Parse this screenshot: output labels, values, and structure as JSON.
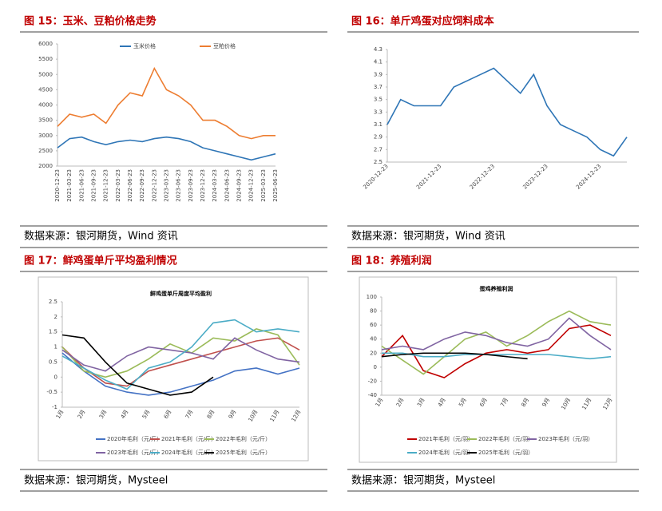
{
  "captions": [
    "图 15：玉米、豆粕价格走势",
    "图 16：单斤鸡蛋对应饲料成本",
    "图 17：鲜鸡蛋单斤平均盈利情况",
    "图 18：养殖利润"
  ],
  "sources": [
    "数据来源：银河期货，Wind 资讯",
    "数据来源：银河期货，Wind 资讯",
    "数据来源：银河期货，Mysteel",
    "数据来源：银河期货，Mysteel"
  ],
  "chart_data": [
    {
      "type": "line",
      "legend": "top",
      "categories": [
        "2020-12-23",
        "2021-03-23",
        "2021-06-23",
        "2021-09-23",
        "2021-12-23",
        "2022-03-23",
        "2022-06-23",
        "2022-09-23",
        "2022-12-23",
        "2023-03-23",
        "2023-06-23",
        "2023-09-23",
        "2023-12-23",
        "2024-03-23",
        "2024-06-23",
        "2024-09-23",
        "2024-12-23",
        "2025-03-23",
        "2025-06-23"
      ],
      "series": [
        {
          "name": "玉米价格",
          "color": "#2e75b6",
          "values": [
            2600,
            2900,
            2950,
            2800,
            2700,
            2800,
            2850,
            2800,
            2900,
            2950,
            2900,
            2800,
            2600,
            2500,
            2400,
            2300,
            2200,
            2300,
            2400
          ]
        },
        {
          "name": "豆粕价格",
          "color": "#ed7d31",
          "values": [
            3300,
            3700,
            3600,
            3700,
            3400,
            4000,
            4400,
            4300,
            5200,
            4500,
            4300,
            4000,
            3500,
            3500,
            3300,
            3000,
            2900,
            3000,
            3000
          ]
        }
      ],
      "ylim": [
        2000,
        6000
      ],
      "yticks": [
        2000,
        2500,
        3000,
        3500,
        4000,
        4500,
        5000,
        5500,
        6000
      ]
    },
    {
      "type": "line",
      "categories": [
        "2020-12-23",
        null,
        null,
        null,
        "2021-12-23",
        null,
        null,
        null,
        "2022-12-23",
        null,
        null,
        null,
        "2023-12-23",
        null,
        null,
        null,
        "2024-12-23",
        null,
        null
      ],
      "color": "#2e75b6",
      "values": [
        3.1,
        3.5,
        3.4,
        3.4,
        3.4,
        3.7,
        3.8,
        3.9,
        4.0,
        3.8,
        3.6,
        3.9,
        3.4,
        3.1,
        3.0,
        2.9,
        2.7,
        2.6,
        2.9
      ],
      "ylim": [
        2.5,
        4.3
      ],
      "yticks": [
        2.5,
        2.7,
        2.9,
        3.1,
        3.3,
        3.5,
        3.7,
        3.9,
        4.1,
        4.3
      ]
    },
    {
      "type": "line",
      "title": "鲜鸡蛋单斤周度平均盈利",
      "legend": "bottom",
      "categories": [
        "1月",
        "2月",
        "3月",
        "4月",
        "5月",
        "6月",
        "7月",
        "8月",
        "9月",
        "10月",
        "11月",
        "12月"
      ],
      "series": [
        {
          "name": "2020年毛利（元/斤）",
          "color": "#4472c4",
          "values": [
            0.8,
            0.2,
            -0.3,
            -0.5,
            -0.6,
            -0.5,
            -0.3,
            -0.1,
            0.2,
            0.3,
            0.1,
            0.3
          ]
        },
        {
          "name": "2021年毛利（元/斤）",
          "color": "#c0504d",
          "values": [
            1.0,
            0.3,
            -0.2,
            -0.3,
            0.2,
            0.4,
            0.6,
            0.8,
            1.0,
            1.2,
            1.3,
            0.9
          ]
        },
        {
          "name": "2022年毛利（元/斤）",
          "color": "#9bbb59",
          "values": [
            1.0,
            0.2,
            0.0,
            0.2,
            0.6,
            1.1,
            0.8,
            1.3,
            1.2,
            1.6,
            1.4,
            0.4
          ]
        },
        {
          "name": "2023年毛利（元/斤）",
          "color": "#8064a2",
          "values": [
            0.9,
            0.4,
            0.2,
            0.7,
            1.0,
            0.9,
            0.8,
            0.6,
            1.3,
            0.9,
            0.6,
            0.5
          ]
        },
        {
          "name": "2024年毛利（元/斤）",
          "color": "#4bacc6",
          "values": [
            0.7,
            0.3,
            -0.1,
            -0.4,
            0.3,
            0.5,
            1.0,
            1.8,
            1.9,
            1.5,
            1.6,
            1.5
          ]
        },
        {
          "name": "2025年毛利（元/斤）",
          "color": "#000000",
          "values": [
            1.4,
            1.3,
            0.5,
            -0.2,
            -0.4,
            -0.6,
            -0.5,
            0.0,
            null,
            null,
            null,
            null
          ]
        }
      ],
      "ylim": [
        -1,
        2.5
      ],
      "yticks": [
        -1,
        -0.5,
        0,
        0.5,
        1,
        1.5,
        2,
        2.5
      ]
    },
    {
      "type": "line",
      "title": "蛋鸡养殖利润",
      "legend": "bottom",
      "categories": [
        "1月",
        "2月",
        "3月",
        "4月",
        "5月",
        "6月",
        "7月",
        "8月",
        "9月",
        "10月",
        "11月",
        "12月"
      ],
      "series": [
        {
          "name": "2021年毛利（元/羽）",
          "color": "#c00000",
          "values": [
            15,
            45,
            -5,
            -15,
            5,
            20,
            25,
            20,
            25,
            55,
            60,
            45
          ]
        },
        {
          "name": "2022年毛利（元/羽）",
          "color": "#9bbb59",
          "values": [
            30,
            10,
            -10,
            15,
            40,
            50,
            30,
            45,
            65,
            80,
            65,
            60
          ]
        },
        {
          "name": "2023年毛利（元/羽）",
          "color": "#8064a2",
          "values": [
            25,
            30,
            25,
            40,
            50,
            45,
            35,
            30,
            40,
            70,
            45,
            25
          ]
        },
        {
          "name": "2024年毛利（元/羽）",
          "color": "#4bacc6",
          "values": [
            20,
            20,
            15,
            15,
            18,
            18,
            18,
            18,
            18,
            15,
            12,
            15
          ]
        },
        {
          "name": "2025年毛利（元/羽）",
          "color": "#000000",
          "values": [
            15,
            18,
            20,
            20,
            20,
            18,
            15,
            12,
            null,
            null,
            null,
            null
          ]
        }
      ],
      "ylim": [
        -40,
        100
      ],
      "yticks": [
        -40,
        -20,
        0,
        20,
        40,
        60,
        80,
        100
      ]
    }
  ]
}
